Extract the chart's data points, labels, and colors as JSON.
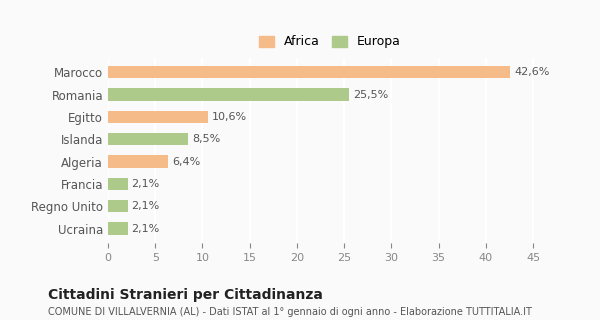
{
  "categories": [
    "Marocco",
    "Romania",
    "Egitto",
    "Islanda",
    "Algeria",
    "Francia",
    "Regno Unito",
    "Ucraina"
  ],
  "values": [
    42.6,
    25.5,
    10.6,
    8.5,
    6.4,
    2.1,
    2.1,
    2.1
  ],
  "labels": [
    "42,6%",
    "25,5%",
    "10,6%",
    "8,5%",
    "6,4%",
    "2,1%",
    "2,1%",
    "2,1%"
  ],
  "colors": [
    "#F5BC8A",
    "#AECA8A",
    "#F5BC8A",
    "#AECA8A",
    "#F5BC8A",
    "#AECA8A",
    "#AECA8A",
    "#AECA8A"
  ],
  "legend": [
    {
      "label": "Africa",
      "color": "#F5BC8A"
    },
    {
      "label": "Europa",
      "color": "#AECA8A"
    }
  ],
  "xlim": [
    0,
    47
  ],
  "xticks": [
    0,
    5,
    10,
    15,
    20,
    25,
    30,
    35,
    40,
    45
  ],
  "title": "Cittadini Stranieri per Cittadinanza",
  "subtitle": "COMUNE DI VILLALVERNIA (AL) - Dati ISTAT al 1° gennaio di ogni anno - Elaborazione TUTTITALIA.IT",
  "background_color": "#FAFAFA",
  "grid_color": "#FFFFFF",
  "bar_height": 0.55
}
